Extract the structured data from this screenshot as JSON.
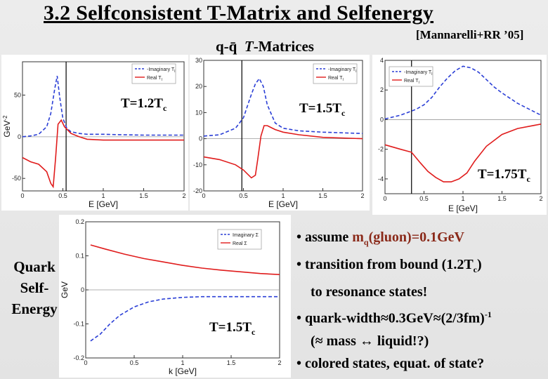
{
  "title": "3.2 Selfconsistent T-Matrix and Selfenergy",
  "citation": "[Mannarelli+RR ’05]",
  "subtitle": {
    "prefix": "q-q̄",
    "italic": "T",
    "suffix": "-Matrices"
  },
  "side_label": {
    "line1": "Quark",
    "line2": "Self-",
    "line3": "Energy"
  },
  "bullets": {
    "b1_a": "• assume ",
    "b1_m": "m",
    "b1_sub": "q",
    "b1_b": "(gluon)=0.1GeV",
    "b2_a": "• transition from bound (1.2T",
    "b2_sub": "c",
    "b2_b": ")",
    "b3": "to resonance states!",
    "b4_a": "• quark-width≈0.3GeV≈(2/3fm)",
    "b4_sup": "-1",
    "b5": "(≈ mass ↔ liquid!?)",
    "b6": "• colored states, equat. of state?"
  },
  "chart_data": [
    {
      "type": "line",
      "temperature_label": {
        "text": "T=1.2T",
        "sub": "c"
      },
      "xlabel": "E [GeV]",
      "ylabel": "GeV",
      "ylabel_sup": "-2",
      "xlim": [
        0,
        2
      ],
      "ylim": [
        -65,
        90
      ],
      "xticks": [
        0,
        0.5,
        1,
        1.5,
        2
      ],
      "xtick_labels": [
        "0",
        "0.5",
        "1",
        "1.5",
        "2"
      ],
      "yticks": [
        -50,
        0,
        50
      ],
      "ytick_labels": [
        "-50",
        "0",
        "50"
      ],
      "vline": 0.54,
      "legend": [
        "-Imaginary T",
        "Real T"
      ],
      "legend_sub": [
        "I",
        "I"
      ],
      "colors": {
        "imag": "#2b3fd6",
        "real": "#e01c1c"
      },
      "series": [
        {
          "name": "-Imaginary T",
          "style": "dashed",
          "x": [
            0,
            0.1,
            0.2,
            0.3,
            0.35,
            0.4,
            0.43,
            0.46,
            0.5,
            0.55,
            0.6,
            0.7,
            0.8,
            1.0,
            1.2,
            1.5,
            2.0
          ],
          "y": [
            0,
            1,
            3,
            12,
            28,
            58,
            73,
            48,
            22,
            10,
            6,
            4,
            3,
            3,
            2.5,
            2,
            2
          ]
        },
        {
          "name": "Real T",
          "style": "solid",
          "x": [
            0,
            0.1,
            0.2,
            0.3,
            0.35,
            0.38,
            0.41,
            0.44,
            0.48,
            0.52,
            0.56,
            0.6,
            0.7,
            0.8,
            1.0,
            1.2,
            1.5,
            2.0
          ],
          "y": [
            -25,
            -30,
            -33,
            -42,
            -56,
            -60,
            -25,
            15,
            20,
            12,
            8,
            4,
            0,
            -3,
            -4,
            -4,
            -4,
            -4
          ]
        }
      ]
    },
    {
      "type": "line",
      "temperature_label": {
        "text": "T=1.5T",
        "sub": "c"
      },
      "xlabel": "E [GeV]",
      "xlim": [
        0,
        2
      ],
      "ylim": [
        -20,
        30
      ],
      "xticks": [
        0,
        0.5,
        1,
        1.5,
        2
      ],
      "xtick_labels": [
        "0",
        "0.5",
        "1",
        "1.5",
        "2"
      ],
      "yticks": [
        -20,
        -10,
        0,
        10,
        20,
        30
      ],
      "ytick_labels": [
        "-20",
        "-10",
        "0",
        "10",
        "20",
        "30"
      ],
      "vline": 0.48,
      "legend": [
        "-Imaginary T",
        "Real T"
      ],
      "legend_sub": [
        "I",
        "I"
      ],
      "colors": {
        "imag": "#2b3fd6",
        "real": "#e01c1c"
      },
      "series": [
        {
          "name": "-Imaginary T",
          "style": "dashed",
          "x": [
            0,
            0.2,
            0.4,
            0.5,
            0.6,
            0.65,
            0.7,
            0.75,
            0.8,
            0.9,
            1.0,
            1.2,
            1.5,
            2.0
          ],
          "y": [
            1,
            1.5,
            4,
            8,
            17,
            21,
            23,
            20,
            13,
            6,
            4,
            3,
            2.5,
            2
          ]
        },
        {
          "name": "Real T",
          "style": "solid",
          "x": [
            0,
            0.2,
            0.4,
            0.5,
            0.6,
            0.65,
            0.68,
            0.72,
            0.76,
            0.8,
            0.9,
            1.0,
            1.2,
            1.5,
            2.0
          ],
          "y": [
            -7,
            -8,
            -10,
            -12,
            -15,
            -14,
            -8,
            1,
            5,
            5,
            3.5,
            2.5,
            1.5,
            0.5,
            0
          ]
        }
      ]
    },
    {
      "type": "line",
      "temperature_label": {
        "text": "T=1.75T",
        "sub": "c"
      },
      "xlabel": "E [GeV]",
      "xlim": [
        0,
        2
      ],
      "ylim": [
        -5,
        4
      ],
      "xticks": [
        0,
        0.5,
        1,
        1.5,
        2
      ],
      "xtick_labels": [
        "0",
        "0.5",
        "1",
        "1.5",
        "2"
      ],
      "yticks": [
        -4,
        -2,
        0,
        2,
        4
      ],
      "ytick_labels": [
        "-4",
        "-2",
        "0",
        "2",
        "4"
      ],
      "vline": 0.34,
      "legend": [
        "-Imaginary T",
        "Real T"
      ],
      "legend_sub": [
        "I",
        "I"
      ],
      "colors": {
        "imag": "#2b3fd6",
        "real": "#e01c1c"
      },
      "series": [
        {
          "name": "-Imaginary T",
          "style": "dashed",
          "x": [
            0,
            0.2,
            0.4,
            0.5,
            0.6,
            0.7,
            0.8,
            0.9,
            1.0,
            1.1,
            1.2,
            1.3,
            1.4,
            1.5,
            1.7,
            2.0
          ],
          "y": [
            0.05,
            0.3,
            0.7,
            1.0,
            1.5,
            2.2,
            2.8,
            3.3,
            3.6,
            3.5,
            3.2,
            2.7,
            2.2,
            1.8,
            1.1,
            0.3
          ]
        },
        {
          "name": "Real T",
          "style": "solid",
          "x": [
            0,
            0.2,
            0.34,
            0.45,
            0.55,
            0.65,
            0.75,
            0.85,
            0.95,
            1.05,
            1.15,
            1.3,
            1.5,
            1.7,
            2.0
          ],
          "y": [
            -1.7,
            -2.0,
            -2.2,
            -2.9,
            -3.5,
            -3.9,
            -4.2,
            -4.2,
            -4.0,
            -3.6,
            -2.8,
            -1.8,
            -1.0,
            -0.6,
            -0.3
          ]
        }
      ]
    },
    {
      "type": "line",
      "temperature_label": {
        "text": "T=1.5T",
        "sub": "c"
      },
      "xlabel": "k [GeV]",
      "ylabel": "GeV",
      "xlim": [
        0,
        2
      ],
      "ylim": [
        -0.2,
        0.2
      ],
      "xticks": [
        0,
        0.5,
        1,
        1.5,
        2
      ],
      "xtick_labels": [
        "0",
        "0.5",
        "1",
        "1.5",
        "2"
      ],
      "yticks": [
        -0.2,
        -0.1,
        0,
        0.1,
        0.2
      ],
      "ytick_labels": [
        "-0.2",
        "-0.1",
        "0",
        "0.1",
        "0.2"
      ],
      "legend": [
        "Imaginary Σ",
        "Real Σ"
      ],
      "colors": {
        "imag": "#2b3fd6",
        "real": "#e01c1c"
      },
      "series": [
        {
          "name": "Imaginary Σ",
          "style": "dashed",
          "x": [
            0.05,
            0.15,
            0.25,
            0.35,
            0.5,
            0.65,
            0.8,
            1.0,
            1.2,
            1.4,
            1.6,
            1.8,
            2.0
          ],
          "y": [
            -0.15,
            -0.13,
            -0.1,
            -0.075,
            -0.05,
            -0.035,
            -0.027,
            -0.022,
            -0.02,
            -0.02,
            -0.02,
            -0.02,
            -0.02
          ]
        },
        {
          "name": "Real Σ",
          "style": "solid",
          "x": [
            0.05,
            0.2,
            0.4,
            0.6,
            0.8,
            1.0,
            1.2,
            1.4,
            1.6,
            1.8,
            2.0
          ],
          "y": [
            0.132,
            0.12,
            0.105,
            0.092,
            0.082,
            0.072,
            0.064,
            0.058,
            0.053,
            0.048,
            0.045
          ]
        }
      ]
    }
  ]
}
